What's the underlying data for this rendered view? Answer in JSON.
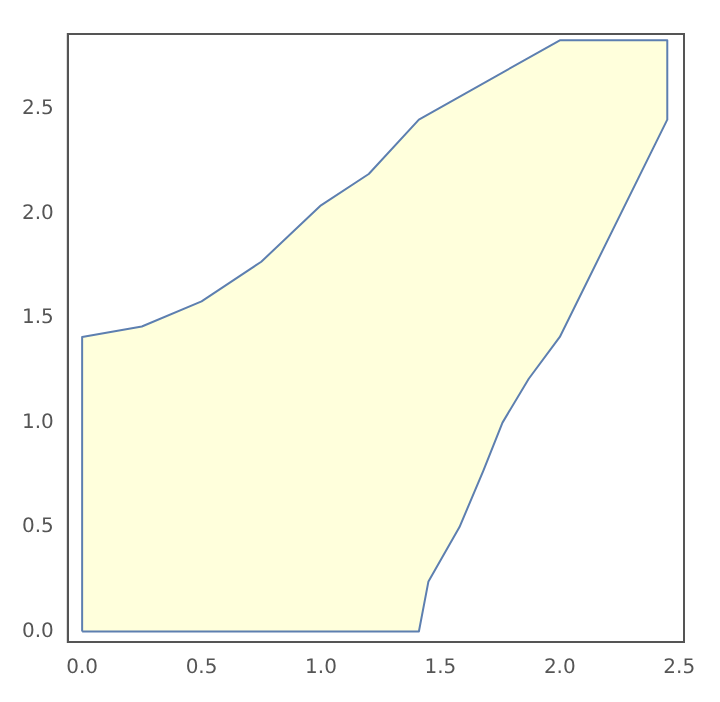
{
  "chart_data": {
    "type": "area",
    "series": [
      {
        "color": "#ffffdc",
        "x": [
          0,
          0,
          0.25,
          0.5,
          0.75,
          1.0,
          1.2,
          1.41,
          2.0,
          2.45,
          2.45,
          2.0,
          1.87,
          1.76,
          1.68,
          1.58,
          1.45,
          1.41,
          0
        ],
        "values": [
          0,
          1.41,
          1.46,
          1.58,
          1.77,
          2.04,
          2.19,
          2.45,
          2.83,
          2.83,
          2.45,
          1.41,
          1.21,
          1.0,
          0.77,
          0.5,
          0.24,
          0,
          0
        ]
      }
    ],
    "xlim": [
      -0.06,
      2.52
    ],
    "ylim": [
      -0.05,
      2.86
    ],
    "xticks": [
      {
        "value": 0,
        "label": "0.0"
      },
      {
        "value": 0.5,
        "label": "0.5"
      },
      {
        "value": 1,
        "label": "1.0"
      },
      {
        "value": 1.5,
        "label": "1.5"
      },
      {
        "value": 2,
        "label": "2.0"
      },
      {
        "value": 2.5,
        "label": "2.5"
      }
    ],
    "yticks": [
      {
        "value": 0,
        "label": "0.0"
      },
      {
        "value": 0.5,
        "label": "0.5"
      },
      {
        "value": 1,
        "label": "1.0"
      },
      {
        "value": 1.5,
        "label": "1.5"
      },
      {
        "value": 2,
        "label": "2.0"
      },
      {
        "value": 2.5,
        "label": "2.5"
      }
    ],
    "grid": false,
    "legend": false
  }
}
